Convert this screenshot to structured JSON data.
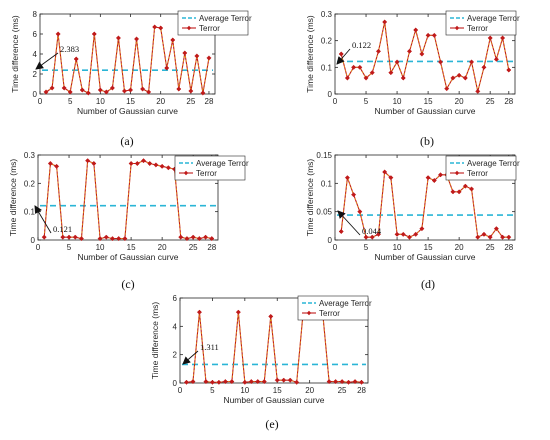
{
  "colors": {
    "average": "#2ab5d6",
    "terror": "#c01a1a",
    "terror_line": "#e0911a"
  },
  "chart_data": [
    {
      "panel": "(a)",
      "type": "line",
      "xlabel": "Number of Gaussian curve",
      "ylabel": "Time difference (ms)",
      "xlim": [
        0,
        29
      ],
      "ylim": [
        0,
        8
      ],
      "xticks": [
        0,
        5,
        10,
        15,
        20,
        25,
        28
      ],
      "yticks": [
        0,
        2,
        4,
        6,
        8
      ],
      "legend": "top-right",
      "average": 2.383,
      "average_label": "2.383",
      "series": [
        {
          "name": "Average Terror",
          "values": [
            2.383
          ]
        },
        {
          "name": "Terror",
          "x": [
            1,
            2,
            3,
            4,
            5,
            6,
            7,
            8,
            9,
            10,
            11,
            12,
            13,
            14,
            15,
            16,
            17,
            18,
            19,
            20,
            21,
            22,
            23,
            24,
            25,
            26,
            27,
            28
          ],
          "y": [
            0.2,
            0.6,
            6.0,
            0.6,
            0.2,
            3.5,
            0.4,
            0.1,
            6.0,
            0.4,
            0.2,
            0.6,
            5.6,
            0.3,
            0.4,
            5.5,
            0.5,
            0.2,
            6.7,
            6.6,
            2.6,
            5.4,
            0.5,
            4.1,
            0.3,
            3.8,
            0.1,
            3.6
          ]
        }
      ]
    },
    {
      "panel": "(b)",
      "type": "line",
      "xlabel": "Number of Gaussian curve",
      "ylabel": "Time difference (ms)",
      "xlim": [
        0,
        29
      ],
      "ylim": [
        0,
        0.3
      ],
      "xticks": [
        0,
        5,
        10,
        15,
        20,
        25,
        28
      ],
      "yticks": [
        0,
        0.1,
        0.2,
        0.3
      ],
      "legend": "top-right",
      "average": 0.122,
      "average_label": "0.122",
      "series": [
        {
          "name": "Average Terror",
          "values": [
            0.122
          ]
        },
        {
          "name": "Terror",
          "x": [
            1,
            2,
            3,
            4,
            5,
            6,
            7,
            8,
            9,
            10,
            11,
            12,
            13,
            14,
            15,
            16,
            17,
            18,
            19,
            20,
            21,
            22,
            23,
            24,
            25,
            26,
            27,
            28
          ],
          "y": [
            0.15,
            0.06,
            0.1,
            0.1,
            0.06,
            0.08,
            0.16,
            0.27,
            0.08,
            0.12,
            0.06,
            0.16,
            0.24,
            0.15,
            0.22,
            0.22,
            0.12,
            0.02,
            0.06,
            0.07,
            0.06,
            0.12,
            0.01,
            0.1,
            0.21,
            0.13,
            0.21,
            0.09
          ]
        }
      ]
    },
    {
      "panel": "(c)",
      "type": "line",
      "xlabel": "Number of Gaussian curve",
      "ylabel": "Time difference (ms)",
      "xlim": [
        0,
        29
      ],
      "ylim": [
        0,
        0.3
      ],
      "xticks": [
        0,
        5,
        10,
        15,
        20,
        25,
        28
      ],
      "yticks": [
        0,
        0.1,
        0.2,
        0.3
      ],
      "legend": "top-right",
      "average": 0.121,
      "average_label": "0.121",
      "series": [
        {
          "name": "Average Terror",
          "values": [
            0.121
          ]
        },
        {
          "name": "Terror",
          "x": [
            1,
            2,
            3,
            4,
            5,
            6,
            7,
            8,
            9,
            10,
            11,
            12,
            13,
            14,
            15,
            16,
            17,
            18,
            19,
            20,
            21,
            22,
            23,
            24,
            25,
            26,
            27,
            28
          ],
          "y": [
            0.01,
            0.27,
            0.26,
            0.01,
            0.01,
            0.01,
            0.005,
            0.28,
            0.27,
            0.005,
            0.01,
            0.005,
            0.005,
            0.005,
            0.27,
            0.27,
            0.28,
            0.27,
            0.265,
            0.26,
            0.255,
            0.25,
            0.01,
            0.005,
            0.01,
            0.005,
            0.01,
            0.005
          ]
        }
      ]
    },
    {
      "panel": "(d)",
      "type": "line",
      "xlabel": "Number of Gaussian curve",
      "ylabel": "Time difference (ms)",
      "xlim": [
        0,
        29
      ],
      "ylim": [
        0,
        0.15
      ],
      "xticks": [
        0,
        5,
        10,
        15,
        20,
        25,
        28
      ],
      "yticks": [
        0,
        0.05,
        0.1,
        0.15
      ],
      "legend": "top-right",
      "average": 0.044,
      "average_label": "0.044",
      "series": [
        {
          "name": "Average Terror",
          "values": [
            0.044
          ]
        },
        {
          "name": "Terror",
          "x": [
            1,
            2,
            3,
            4,
            5,
            6,
            7,
            8,
            9,
            10,
            11,
            12,
            13,
            14,
            15,
            16,
            17,
            18,
            19,
            20,
            21,
            22,
            23,
            24,
            25,
            26,
            27,
            28
          ],
          "y": [
            0.015,
            0.11,
            0.08,
            0.05,
            0.005,
            0.005,
            0.01,
            0.12,
            0.11,
            0.01,
            0.01,
            0.005,
            0.01,
            0.02,
            0.11,
            0.105,
            0.115,
            0.115,
            0.085,
            0.085,
            0.095,
            0.09,
            0.005,
            0.01,
            0.005,
            0.02,
            0.005,
            0.005
          ]
        }
      ]
    },
    {
      "panel": "(e)",
      "type": "line",
      "xlabel": "Number of Gaussian curve",
      "ylabel": "Time difference (ms)",
      "xlim": [
        0,
        29
      ],
      "ylim": [
        0,
        6
      ],
      "xticks": [
        0,
        5,
        10,
        15,
        20,
        25,
        28
      ],
      "yticks": [
        0,
        2,
        4,
        6
      ],
      "legend": "top-right",
      "average": 1.311,
      "average_label": "1.311",
      "series": [
        {
          "name": "Average Terror",
          "values": [
            1.311
          ]
        },
        {
          "name": "Terror",
          "x": [
            1,
            2,
            3,
            4,
            5,
            6,
            7,
            8,
            9,
            10,
            11,
            12,
            13,
            14,
            15,
            16,
            17,
            18,
            19,
            20,
            21,
            22,
            23,
            24,
            25,
            26,
            27,
            28
          ],
          "y": [
            0.05,
            0.1,
            5.0,
            0.1,
            0.05,
            0.05,
            0.1,
            0.1,
            5.0,
            0.05,
            0.1,
            0.1,
            0.1,
            4.7,
            0.2,
            0.2,
            0.2,
            0.05,
            5.0,
            5.0,
            5.0,
            5.0,
            0.1,
            0.1,
            0.1,
            0.05,
            0.1,
            0.05
          ]
        }
      ]
    }
  ]
}
